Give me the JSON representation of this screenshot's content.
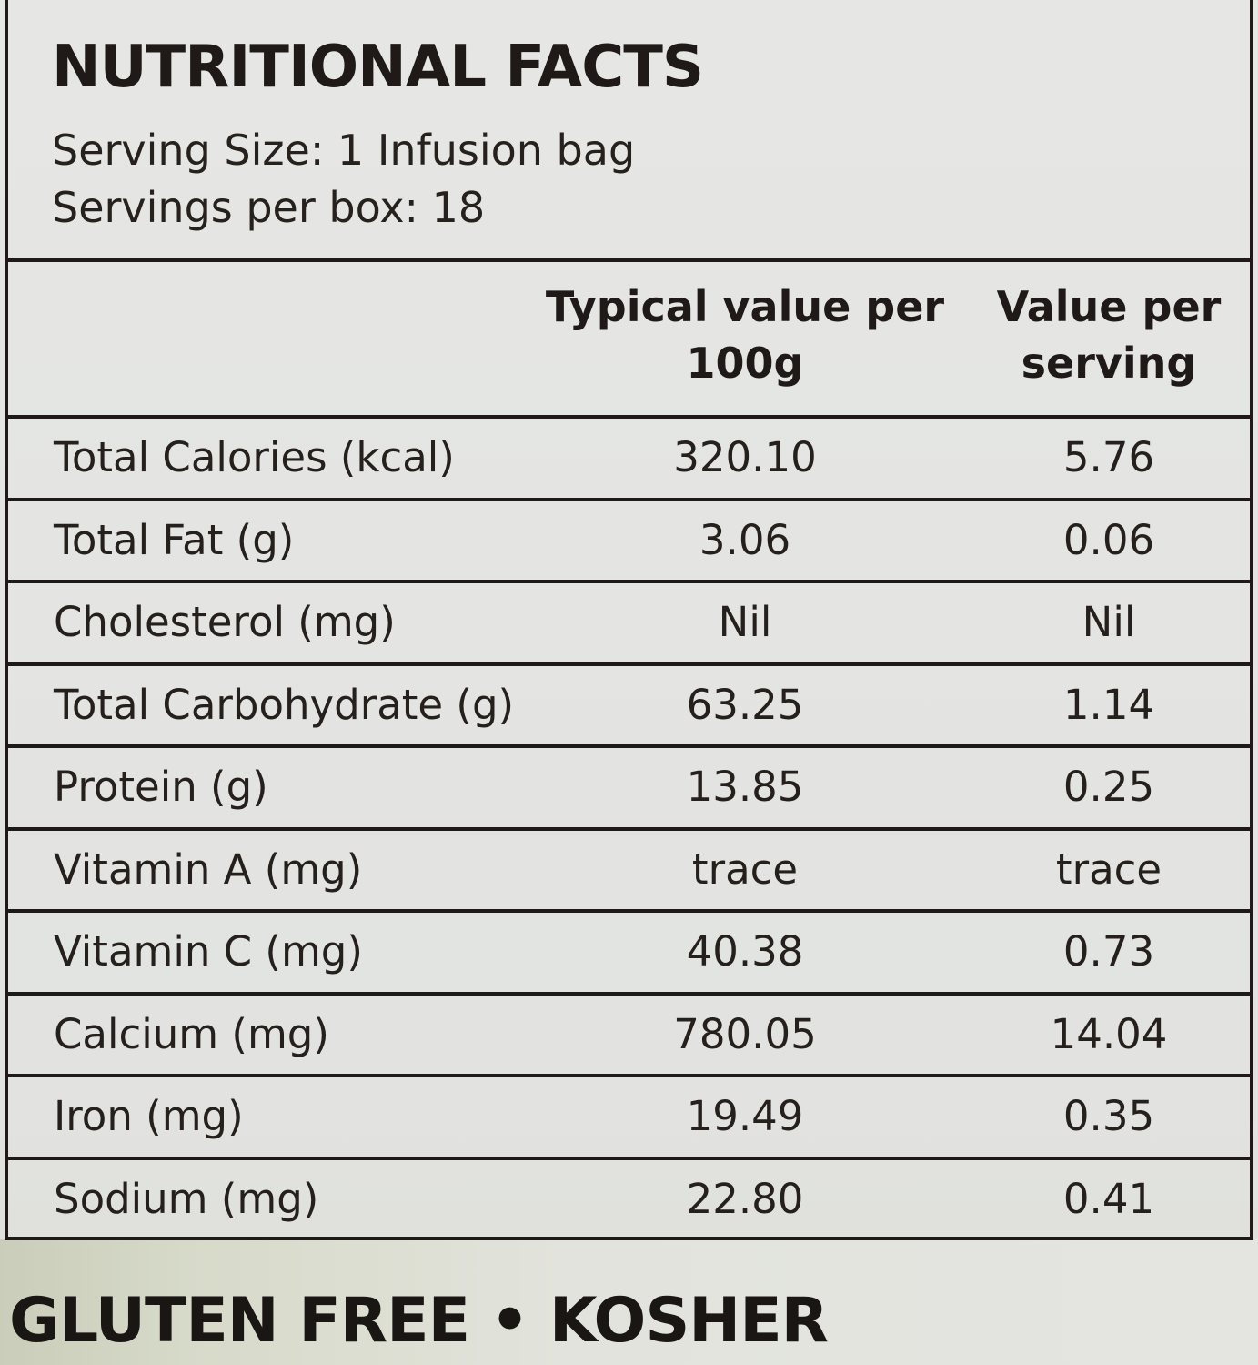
{
  "title": "NUTRITIONAL FACTS",
  "serving_size": "Serving Size: 1 Infusion bag",
  "servings_per_box": "Servings per box: 18",
  "columns": {
    "per_100g_line1": "Typical value per",
    "per_100g_line2": "100g",
    "per_serving_line1": "Value per",
    "per_serving_line2": "serving"
  },
  "rows": [
    {
      "name": "Total Calories (kcal)",
      "per_100g": "320.10",
      "per_serving": "5.76"
    },
    {
      "name": "Total Fat (g)",
      "per_100g": "3.06",
      "per_serving": "0.06"
    },
    {
      "name": "Cholesterol (mg)",
      "per_100g": "Nil",
      "per_serving": "Nil"
    },
    {
      "name": "Total Carbohydrate (g)",
      "per_100g": "63.25",
      "per_serving": "1.14"
    },
    {
      "name": "Protein (g)",
      "per_100g": "13.85",
      "per_serving": "0.25"
    },
    {
      "name": "Vitamin A (mg)",
      "per_100g": "trace",
      "per_serving": "trace"
    },
    {
      "name": "Vitamin C (mg)",
      "per_100g": "40.38",
      "per_serving": "0.73"
    },
    {
      "name": "Calcium (mg)",
      "per_100g": "780.05",
      "per_serving": "14.04"
    },
    {
      "name": "Iron (mg)",
      "per_100g": "19.49",
      "per_serving": "0.35"
    },
    {
      "name": "Sodium (mg)",
      "per_100g": "22.80",
      "per_serving": "0.41"
    }
  ],
  "footer": "GLUTEN FREE • KOSHER"
}
